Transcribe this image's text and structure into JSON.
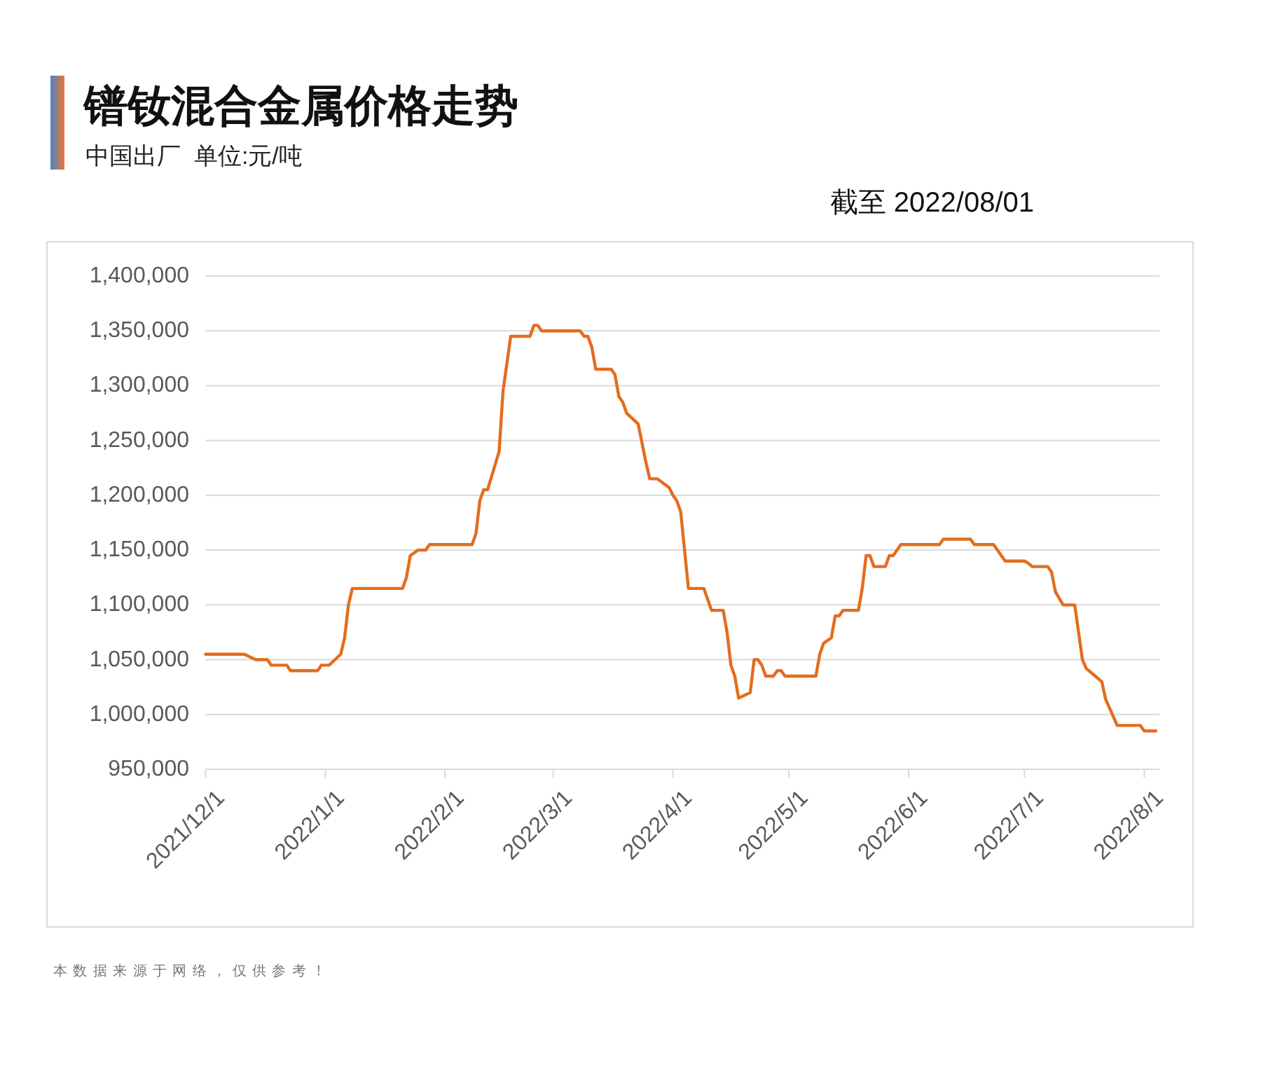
{
  "chart_data": {
    "type": "line",
    "title": "镨钕混合金属价格走势",
    "subtitle": "中国出厂  单位:元/吨",
    "annotations": [
      "截至 2022/08/01",
      "本数据来源于网络，仅供参考！"
    ],
    "x": [
      "2021-12-01",
      "2021-12-11",
      "2021-12-14",
      "2021-12-17",
      "2021-12-18",
      "2021-12-22",
      "2021-12-23",
      "2021-12-30",
      "2021-12-31",
      "2022-01-02",
      "2022-01-05",
      "2022-01-06",
      "2022-01-07",
      "2022-01-08",
      "2022-01-21",
      "2022-01-22",
      "2022-01-23",
      "2022-01-25",
      "2022-01-27",
      "2022-01-28",
      "2022-02-08",
      "2022-02-09",
      "2022-02-10",
      "2022-02-11",
      "2022-02-12",
      "2022-02-15",
      "2022-02-16",
      "2022-02-18",
      "2022-02-23",
      "2022-02-24",
      "2022-02-25",
      "2022-02-26",
      "2022-03-08",
      "2022-03-09",
      "2022-03-10",
      "2022-03-11",
      "2022-03-12",
      "2022-03-16",
      "2022-03-17",
      "2022-03-18",
      "2022-03-19",
      "2022-03-20",
      "2022-03-23",
      "2022-03-25",
      "2022-03-26",
      "2022-03-28",
      "2022-03-31",
      "2022-04-01",
      "2022-04-02",
      "2022-04-03",
      "2022-04-05",
      "2022-04-09",
      "2022-04-11",
      "2022-04-14",
      "2022-04-15",
      "2022-04-16",
      "2022-04-17",
      "2022-04-18",
      "2022-04-21",
      "2022-04-22",
      "2022-04-23",
      "2022-04-24",
      "2022-04-25",
      "2022-04-27",
      "2022-04-28",
      "2022-04-29",
      "2022-04-30",
      "2022-05-08",
      "2022-05-09",
      "2022-05-10",
      "2022-05-12",
      "2022-05-13",
      "2022-05-14",
      "2022-05-15",
      "2022-05-19",
      "2022-05-20",
      "2022-05-21",
      "2022-05-22",
      "2022-05-23",
      "2022-05-26",
      "2022-05-27",
      "2022-05-28",
      "2022-05-30",
      "2022-06-09",
      "2022-06-10",
      "2022-06-17",
      "2022-06-18",
      "2022-06-23",
      "2022-06-26",
      "2022-07-01",
      "2022-07-02",
      "2022-07-03",
      "2022-07-07",
      "2022-07-08",
      "2022-07-09",
      "2022-07-11",
      "2022-07-14",
      "2022-07-16",
      "2022-07-17",
      "2022-07-19",
      "2022-07-21",
      "2022-07-22",
      "2022-07-24",
      "2022-07-25",
      "2022-07-31",
      "2022-08-01",
      "2022-08-04"
    ],
    "series": [
      {
        "color": "#e46c1e",
        "values": [
          1055000,
          1055000,
          1050000,
          1050000,
          1045000,
          1045000,
          1040000,
          1040000,
          1045000,
          1045000,
          1055000,
          1070000,
          1100000,
          1115000,
          1115000,
          1125000,
          1145000,
          1150000,
          1150000,
          1155000,
          1155000,
          1165000,
          1195000,
          1205000,
          1205000,
          1240000,
          1295000,
          1345000,
          1345000,
          1355000,
          1355000,
          1350000,
          1350000,
          1345000,
          1345000,
          1335000,
          1315000,
          1315000,
          1310000,
          1290000,
          1285000,
          1275000,
          1265000,
          1230000,
          1215000,
          1215000,
          1207000,
          1200000,
          1195000,
          1185000,
          1115000,
          1115000,
          1095000,
          1095000,
          1075000,
          1045000,
          1035000,
          1015000,
          1020000,
          1050000,
          1050000,
          1045000,
          1035000,
          1035000,
          1040000,
          1040000,
          1035000,
          1035000,
          1055000,
          1065000,
          1070000,
          1090000,
          1090000,
          1095000,
          1095000,
          1115000,
          1145000,
          1145000,
          1135000,
          1135000,
          1145000,
          1145000,
          1155000,
          1155000,
          1160000,
          1160000,
          1155000,
          1155000,
          1140000,
          1140000,
          1138000,
          1135000,
          1135000,
          1130000,
          1112000,
          1100000,
          1100000,
          1050000,
          1042000,
          1036000,
          1030000,
          1014000,
          998000,
          990000,
          990000,
          985000,
          985000
        ]
      }
    ],
    "xlim": [
      "2021-12-01",
      "2022-08-05"
    ],
    "xticks": [
      {
        "value": "2021-12-01",
        "label": "2021/12/1"
      },
      {
        "value": "2022-01-01",
        "label": "2022/1/1"
      },
      {
        "value": "2022-02-01",
        "label": "2022/2/1"
      },
      {
        "value": "2022-03-01",
        "label": "2022/3/1"
      },
      {
        "value": "2022-04-01",
        "label": "2022/4/1"
      },
      {
        "value": "2022-05-01",
        "label": "2022/5/1"
      },
      {
        "value": "2022-06-01",
        "label": "2022/6/1"
      },
      {
        "value": "2022-07-01",
        "label": "2022/7/1"
      },
      {
        "value": "2022-08-01",
        "label": "2022/8/1"
      }
    ],
    "ylim": [
      950000,
      1400000
    ],
    "yticks": [
      {
        "value": 950000,
        "label": "950,000"
      },
      {
        "value": 1000000,
        "label": "1,000,000"
      },
      {
        "value": 1050000,
        "label": "1,050,000"
      },
      {
        "value": 1100000,
        "label": "1,100,000"
      },
      {
        "value": 1150000,
        "label": "1,150,000"
      },
      {
        "value": 1200000,
        "label": "1,200,000"
      },
      {
        "value": 1250000,
        "label": "1,250,000"
      },
      {
        "value": 1300000,
        "label": "1,300,000"
      },
      {
        "value": 1350000,
        "label": "1,350,000"
      },
      {
        "value": 1400000,
        "label": "1,400,000"
      }
    ],
    "grid": "y",
    "marker": "none",
    "line_style": "solid"
  }
}
